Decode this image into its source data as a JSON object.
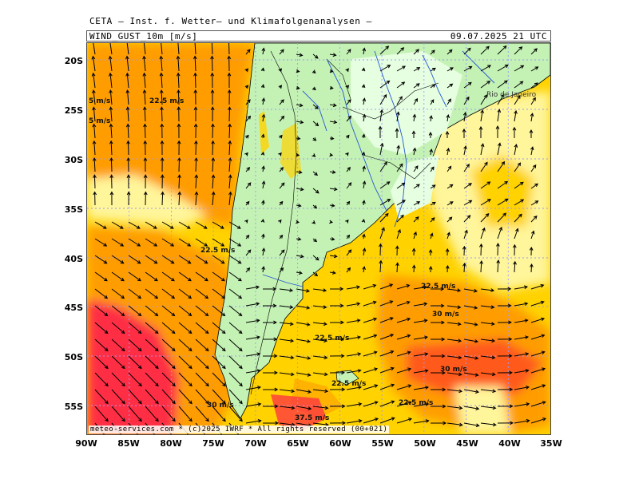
{
  "header": {
    "title": "CETA – Inst. f. Wetter– und Klimafolgenanalysen –",
    "variable": "WIND_GUST_10m [m/s]",
    "valid_time": "09.07.2025  21 UTC"
  },
  "axes": {
    "lat_labels": [
      "20S",
      "25S",
      "30S",
      "35S",
      "40S",
      "45S",
      "50S",
      "55S"
    ],
    "lon_labels": [
      "90W",
      "85W",
      "80W",
      "75W",
      "70W",
      "65W",
      "60W",
      "55W",
      "50W",
      "45W",
      "40W",
      "35W"
    ]
  },
  "contour_labels": [
    "5 m/s",
    "22.5 m/s",
    "5 m/s",
    "22.5 m/s",
    "22.5 m/s",
    "30 m/s",
    "22.5 m/s",
    "30 m/s",
    "22.5 m/s",
    "22.5 m/s",
    "30 m/s",
    "37.5 m/s"
  ],
  "city": "Rio de Janeiro",
  "footer": "meteo-services.com * (c)2025 IWRF * All rights reserved (00+021)",
  "colors": {
    "ocean_low": "#fff59a",
    "ocean_mid": "#ffd200",
    "ocean_high": "#ff9d00",
    "ocean_strong": "#ff5a1e",
    "ocean_extreme": "#ff2e45",
    "land_calm": "#e6ffe0",
    "land_light": "#c4f2b4",
    "coast": "#000000",
    "rivers": "#2456d4",
    "grid": "#9a9aff"
  }
}
